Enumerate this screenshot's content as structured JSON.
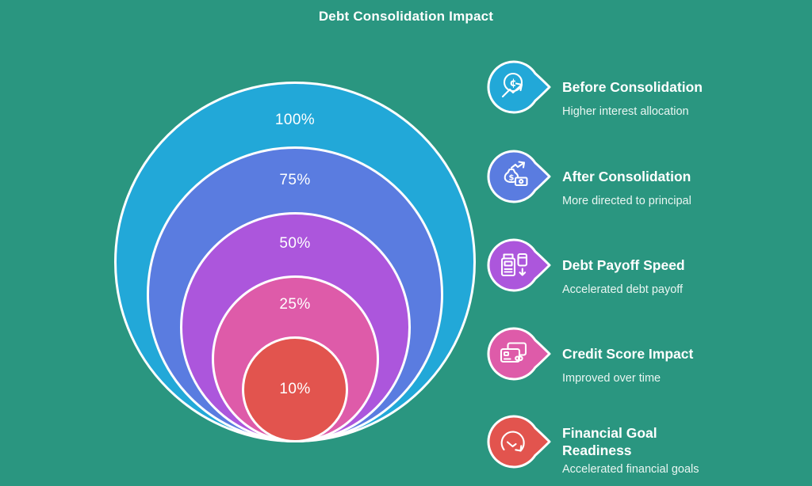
{
  "page": {
    "title": "Debt Consolidation Impact"
  },
  "colors": {
    "background": "#2A9680",
    "outline": "#FFFFFF"
  },
  "chart_data": {
    "type": "nested-circles",
    "title": "Debt Consolidation Impact",
    "labels": [
      "100%",
      "75%",
      "50%",
      "25%",
      "10%"
    ],
    "values": [
      100,
      75,
      50,
      25,
      10
    ],
    "colors": [
      "#22A8D8",
      "#5A7CE0",
      "#AC56DC",
      "#DE5BA9",
      "#E2544E"
    ],
    "legend_position": "right",
    "legend": [
      {
        "title": "Before Consolidation",
        "subtitle": "Higher interest allocation",
        "color": "#22A8D8",
        "icon": "coin-interest-rising-arrow-icon"
      },
      {
        "title": "After Consolidation",
        "subtitle": "More directed to principal",
        "color": "#5A7CE0",
        "icon": "money-bag-growth-icon"
      },
      {
        "title": "Debt Payoff Speed",
        "subtitle": "Accelerated debt payoff",
        "color": "#AC56DC",
        "icon": "payment-terminal-card-icon"
      },
      {
        "title": "Credit Score Impact",
        "subtitle": "Improved over time",
        "color": "#DE5BA9",
        "icon": "credit-cards-icon"
      },
      {
        "title": "Financial Goal Readiness",
        "subtitle": "Accelerated financial goals",
        "color": "#E2544E",
        "icon": "gauge-progress-icon"
      }
    ]
  }
}
